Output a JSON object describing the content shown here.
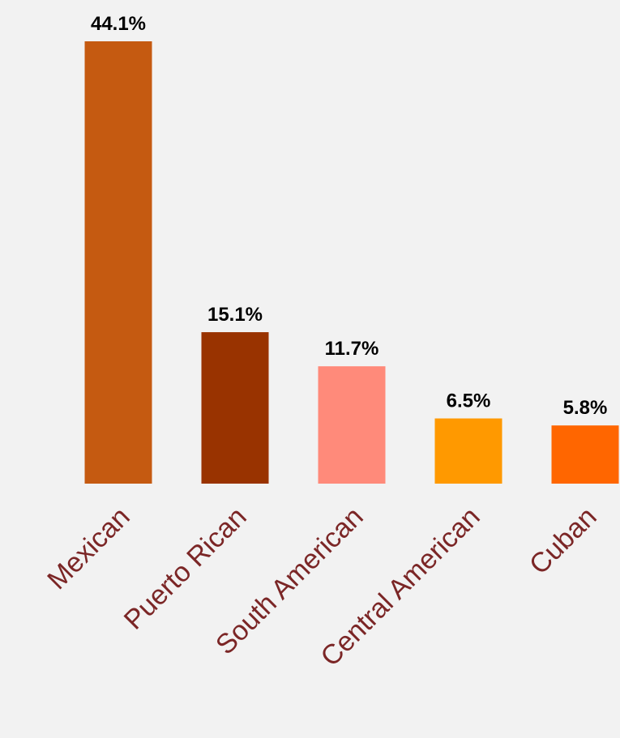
{
  "chart_data": {
    "type": "bar",
    "categories": [
      "Mexican",
      "Puerto Rican",
      "South American",
      "Central American",
      "Cuban"
    ],
    "values": [
      44.1,
      15.1,
      11.7,
      6.5,
      5.8
    ],
    "value_labels": [
      "44.1%",
      "15.1%",
      "11.7%",
      "6.5%",
      "5.8%"
    ],
    "colors": [
      "#c55a11",
      "#993300",
      "#ff8a7a",
      "#ff9900",
      "#ff6600"
    ]
  }
}
